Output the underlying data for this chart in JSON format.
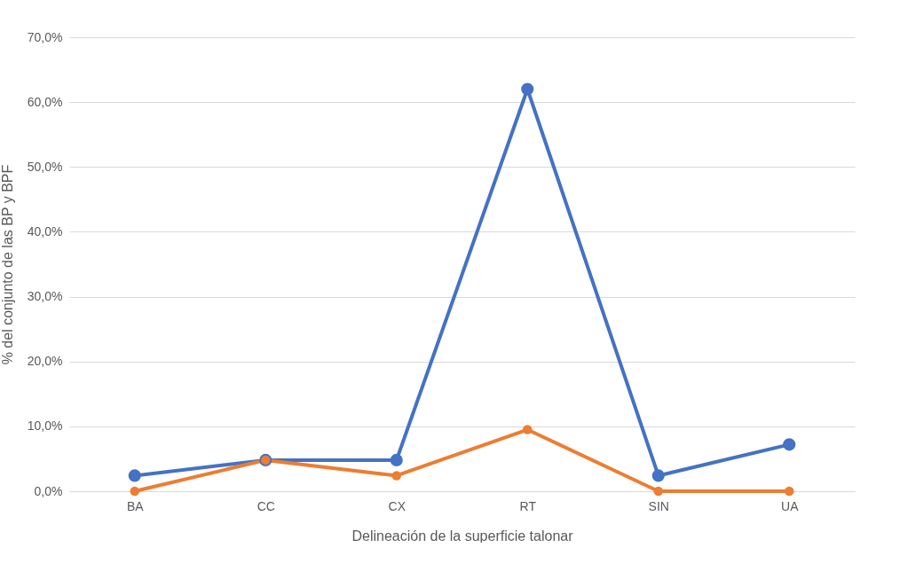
{
  "chart_data": {
    "type": "line",
    "xlabel": "Delineación de la superficie talonar",
    "ylabel": "% del conjunto de las BP y BPF",
    "categories": [
      "BA",
      "CC",
      "CX",
      "RT",
      "SIN",
      "UA"
    ],
    "series": [
      {
        "color": "#4472c4",
        "values": [
          2.4,
          4.8,
          4.8,
          62.0,
          2.4,
          7.2
        ]
      },
      {
        "color": "#ed7d31",
        "values": [
          0,
          4.8,
          2.4,
          9.5,
          0,
          0
        ]
      }
    ],
    "ylim": [
      0,
      70
    ],
    "yticks": [
      {
        "value": 0,
        "label": "0,0%"
      },
      {
        "value": 10,
        "label": "10,0%"
      },
      {
        "value": 20,
        "label": "20,0%"
      },
      {
        "value": 30,
        "label": "30,0%"
      },
      {
        "value": 40,
        "label": "40,0%"
      },
      {
        "value": 50,
        "label": "50,0%"
      },
      {
        "value": 60,
        "label": "60,0%"
      },
      {
        "value": 70,
        "label": "70,0%"
      }
    ],
    "grid": "y",
    "marker": "circle",
    "legend": false
  }
}
